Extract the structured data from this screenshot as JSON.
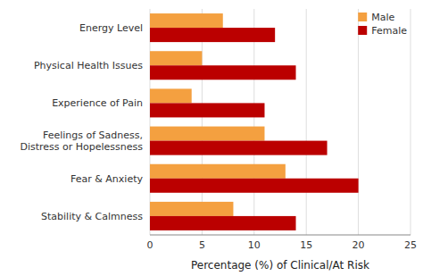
{
  "chart_data": {
    "type": "bar",
    "orientation": "horizontal",
    "categories": [
      "Energy Level",
      "Physical Health Issues",
      "Experience of Pain",
      "Feelings of Sadness, Distress or Hopelessness",
      "Fear & Anxiety",
      "Stability & Calmness"
    ],
    "series": [
      {
        "name": "Male",
        "color": "#F4A040",
        "values": [
          7,
          5,
          4,
          11,
          13,
          8
        ]
      },
      {
        "name": "Female",
        "color": "#BB0000",
        "values": [
          12,
          14,
          11,
          17,
          20,
          14
        ]
      }
    ],
    "xlabel": "Percentage (%) of Clinical/At Risk",
    "xlim": [
      0,
      25
    ],
    "xticks": [
      0,
      5,
      10,
      15,
      20,
      25
    ],
    "grid": true,
    "legend": "upper right"
  }
}
